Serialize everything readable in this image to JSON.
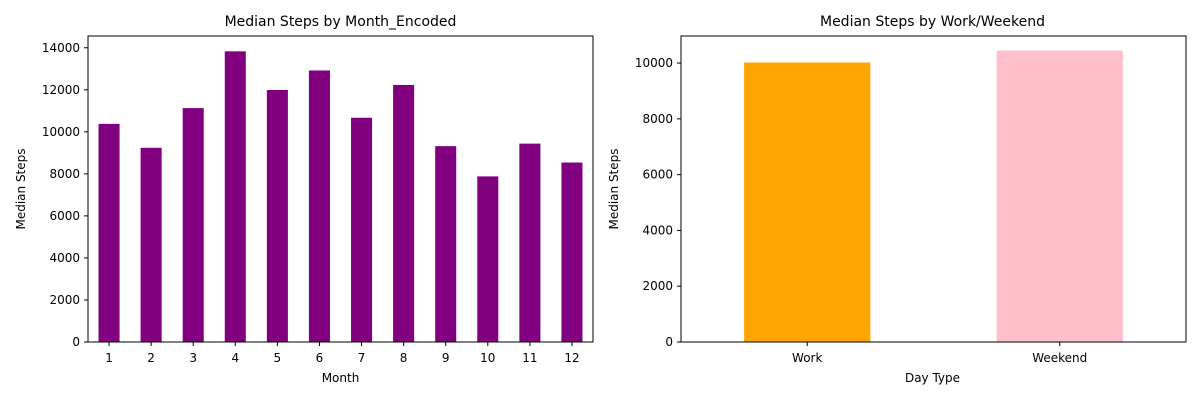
{
  "chart_data": [
    {
      "type": "bar",
      "title": "Median Steps by Month_Encoded",
      "xlabel": "Month",
      "ylabel": "Median Steps",
      "categories": [
        "1",
        "2",
        "3",
        "4",
        "5",
        "6",
        "7",
        "8",
        "9",
        "10",
        "11",
        "12"
      ],
      "values": [
        10380,
        9240,
        11130,
        13830,
        11990,
        12920,
        10670,
        12230,
        9320,
        7880,
        9440,
        8540
      ],
      "ylim": [
        0,
        14560
      ],
      "yticks": [
        0,
        2000,
        4000,
        6000,
        8000,
        10000,
        12000,
        14000
      ],
      "bar_color": "#800080",
      "grid": false,
      "legend": "none"
    },
    {
      "type": "bar",
      "title": "Median Steps by Work/Weekend",
      "xlabel": "Day Type",
      "ylabel": "Median Steps",
      "categories": [
        "Work",
        "Weekend"
      ],
      "values": [
        10020,
        10450
      ],
      "ylim": [
        0,
        10970
      ],
      "yticks": [
        0,
        2000,
        4000,
        6000,
        8000,
        10000
      ],
      "bar_colors": [
        "#FFA500",
        "#FFC0CB"
      ],
      "grid": false,
      "legend": "none"
    }
  ]
}
